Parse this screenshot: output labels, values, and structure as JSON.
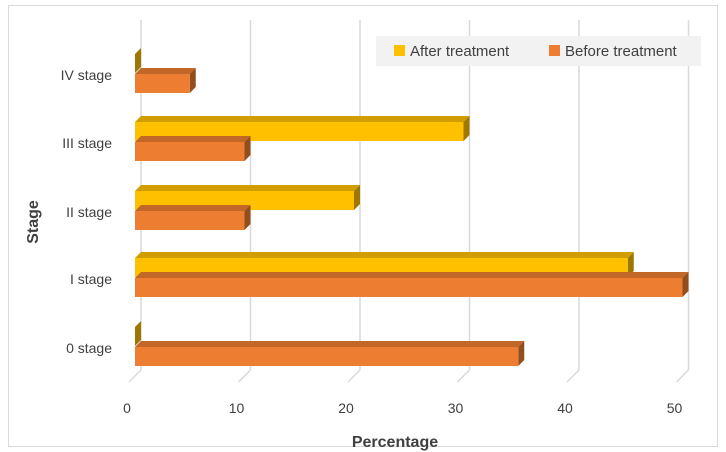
{
  "chart_data": {
    "type": "bar",
    "orientation": "horizontal",
    "categories": [
      "0 stage",
      "I stage",
      "II stage",
      "III stage",
      "IV stage"
    ],
    "series": [
      {
        "name": "After treatment",
        "values": [
          0,
          45,
          20,
          30,
          0
        ]
      },
      {
        "name": "Before treatment",
        "values": [
          35,
          50,
          10,
          10,
          5
        ]
      }
    ],
    "xlabel": "Percentage",
    "ylabel": "Stage",
    "xlim": [
      0,
      50
    ],
    "xticks": [
      0,
      10,
      20,
      30,
      40,
      50
    ],
    "grid": true,
    "legend_position": "top-right",
    "colors": {
      "After treatment": "#FFC000",
      "Before treatment": "#ED7D31",
      "grid": "#d9d9d9"
    }
  }
}
